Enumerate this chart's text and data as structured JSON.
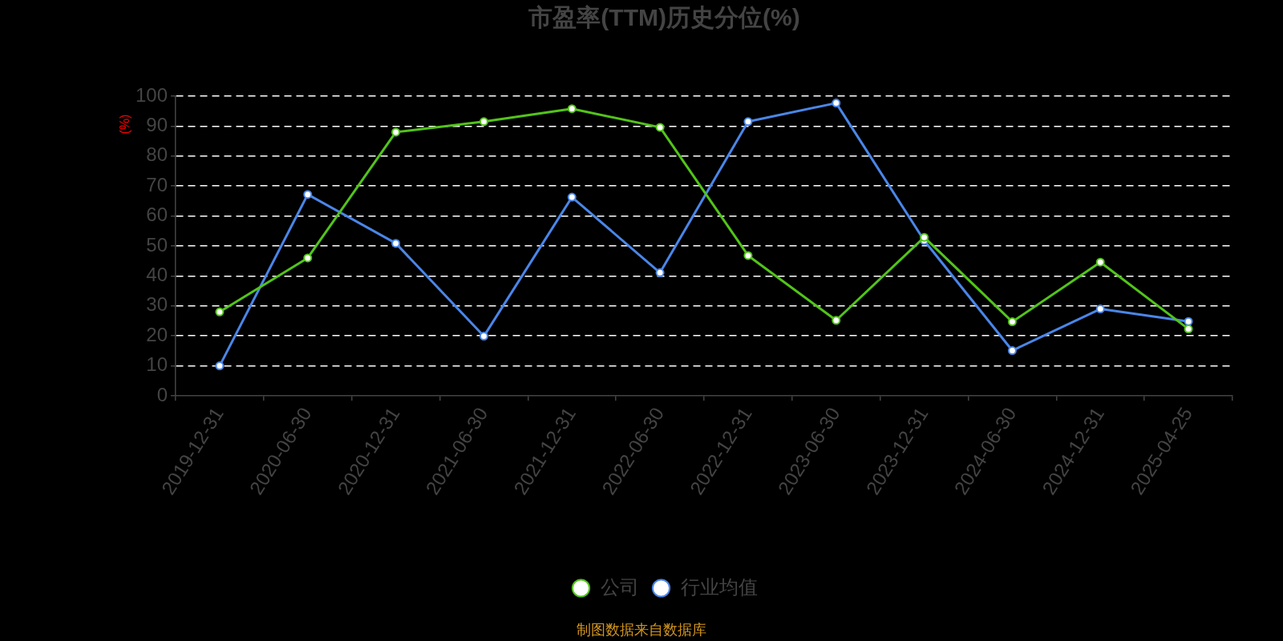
{
  "chart_data": {
    "type": "line",
    "title": "市盈率(TTM)历史分位(%)",
    "ylabel": "(%)",
    "categories": [
      "2019-12-31",
      "2020-06-30",
      "2020-12-31",
      "2021-06-30",
      "2021-12-31",
      "2022-06-30",
      "2022-12-31",
      "2023-06-30",
      "2023-12-31",
      "2024-06-30",
      "2024-12-31",
      "2025-04-25"
    ],
    "series": [
      {
        "name": "公司",
        "color": "#52c41a",
        "values": [
          28,
          46,
          88,
          91.5,
          95.8,
          89.6,
          46.8,
          25.2,
          52.9,
          24.7,
          44.6,
          22.3
        ]
      },
      {
        "name": "行业均值",
        "color": "#4a86e8",
        "values": [
          10,
          67.2,
          50.9,
          19.9,
          66.3,
          41.1,
          91.5,
          97.7,
          51.8,
          15.1,
          29,
          24.8
        ]
      }
    ],
    "ylim": [
      0,
      100
    ],
    "yticks": [
      0,
      10,
      20,
      30,
      40,
      50,
      60,
      70,
      80,
      90,
      100
    ],
    "grid": "y",
    "legend": "bottom",
    "marker": "circle",
    "line_style": "solid",
    "annotations": [
      "制图数据来自数据库"
    ]
  }
}
